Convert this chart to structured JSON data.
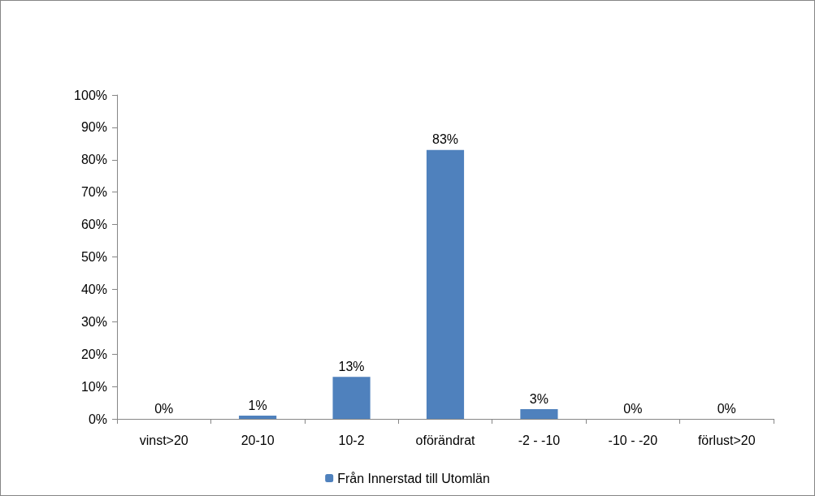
{
  "chart_data": {
    "type": "bar",
    "categories": [
      "vinst>20",
      "20-10",
      "10-2",
      "oförändrat",
      "-2 - -10",
      "-10 - -20",
      "förlust>20"
    ],
    "series": [
      {
        "name": "Från Innerstad till Utomlän",
        "color": "#4f81bd",
        "values": [
          0,
          1,
          13,
          83,
          3,
          0,
          0
        ],
        "value_labels": [
          "0%",
          "1%",
          "13%",
          "83%",
          "3%",
          "0%",
          "0%"
        ]
      }
    ],
    "ylim": [
      0,
      100
    ],
    "yticks": [
      {
        "value": 0,
        "label": "0%"
      },
      {
        "value": 10,
        "label": "10%"
      },
      {
        "value": 20,
        "label": "20%"
      },
      {
        "value": 30,
        "label": "30%"
      },
      {
        "value": 40,
        "label": "40%"
      },
      {
        "value": 50,
        "label": "50%"
      },
      {
        "value": 60,
        "label": "60%"
      },
      {
        "value": 70,
        "label": "70%"
      },
      {
        "value": 80,
        "label": "80%"
      },
      {
        "value": 90,
        "label": "90%"
      },
      {
        "value": 100,
        "label": "100%"
      }
    ],
    "grid": false,
    "legend": "bottom"
  }
}
